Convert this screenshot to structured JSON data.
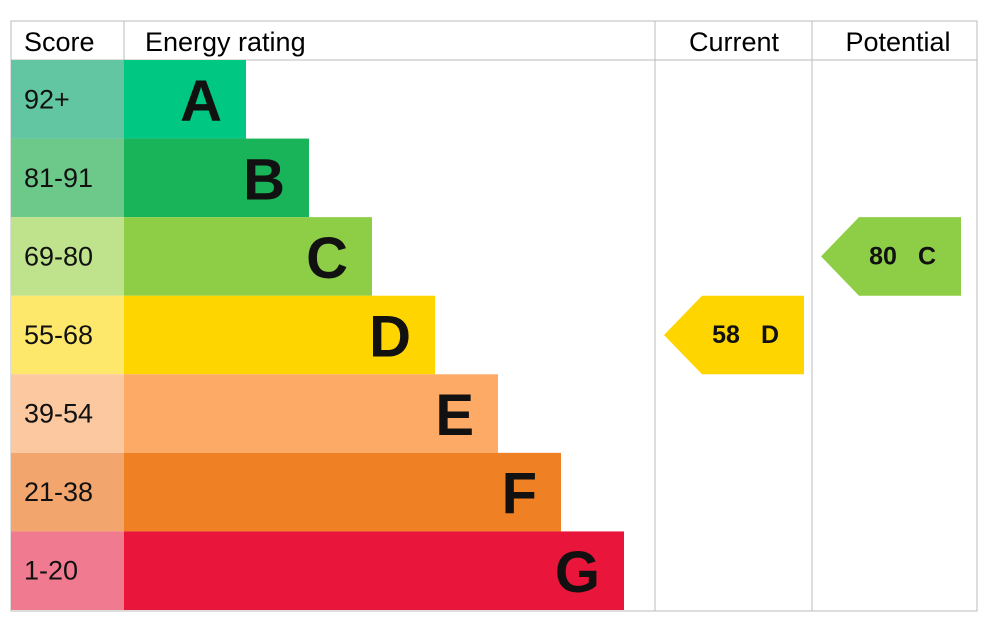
{
  "headers": {
    "score": "Score",
    "rating": "Energy rating",
    "current": "Current",
    "potential": "Potential"
  },
  "bands": [
    {
      "score": "92+",
      "letter": "A",
      "color": "#00c781",
      "score_color": "#62c6a3"
    },
    {
      "score": "81-91",
      "letter": "B",
      "color": "#19b459",
      "score_color": "#6cc98a"
    },
    {
      "score": "69-80",
      "letter": "C",
      "color": "#8dce46",
      "score_color": "#bfe28c"
    },
    {
      "score": "55-68",
      "letter": "D",
      "color": "#ffd500",
      "score_color": "#fde86c"
    },
    {
      "score": "39-54",
      "letter": "E",
      "color": "#fcaa65",
      "score_color": "#fbc8a0"
    },
    {
      "score": "21-38",
      "letter": "F",
      "color": "#ef8023",
      "score_color": "#f2a56c"
    },
    {
      "score": "1-20",
      "letter": "G",
      "color": "#e9153b",
      "score_color": "#f07b91"
    }
  ],
  "current": {
    "value": 58,
    "letter": "D"
  },
  "potential": {
    "value": 80,
    "letter": "C"
  }
}
